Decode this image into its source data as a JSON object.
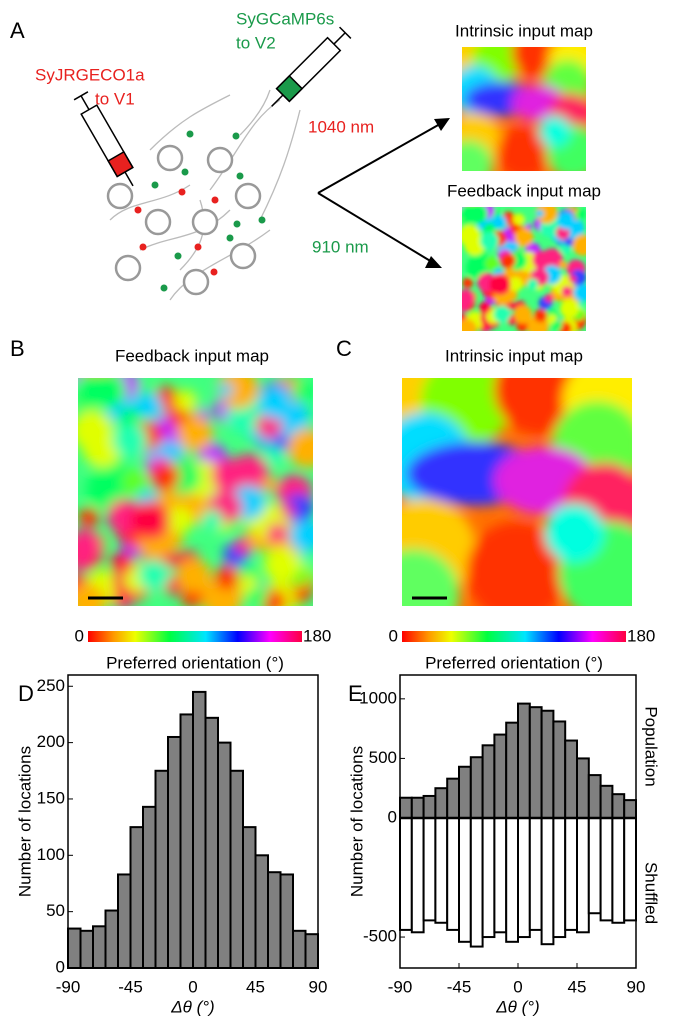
{
  "panels": {
    "a": "A",
    "b": "B",
    "c": "C",
    "d": "D",
    "e": "E"
  },
  "schematic": {
    "red_label": [
      "SyJRGECO1a",
      "to V1"
    ],
    "green_label": [
      "SyGCaMP6s",
      "to V2"
    ],
    "wavelength_red": "1040 nm",
    "wavelength_green": "910 nm",
    "small_map_top": "Intrinsic input map",
    "small_map_bottom": "Feedback input map"
  },
  "maps": {
    "b_title": "Feedback input map",
    "c_title": "Intrinsic input map",
    "colorbar_ticks": [
      0,
      180
    ],
    "colorbar_label": "Preferred orientation (°)"
  },
  "chart_data": [
    {
      "type": "histogram",
      "ylabel": "Number of locations",
      "xlabel": "Δθ (°)",
      "bins": [
        -90,
        -81,
        -72,
        -63,
        -54,
        -45,
        -36,
        -27,
        -18,
        -9,
        0,
        9,
        18,
        27,
        36,
        45,
        54,
        63,
        72,
        81,
        90
      ],
      "values": [
        35,
        33,
        37,
        51,
        83,
        125,
        143,
        175,
        205,
        225,
        245,
        222,
        200,
        175,
        125,
        100,
        85,
        83,
        33,
        30
      ],
      "color": "#808080",
      "xlim": [
        -90,
        90
      ],
      "xticks": [
        -90,
        -45,
        0,
        45,
        90
      ],
      "ylim": [
        0,
        260
      ],
      "yticks": [
        0,
        50,
        100,
        150,
        200,
        250
      ]
    },
    {
      "type": "histogram",
      "ylabel": "Number of locations",
      "xlabel": "Δθ (°)",
      "bins": [
        -90,
        -81,
        -72,
        -63,
        -54,
        -45,
        -36,
        -27,
        -18,
        -9,
        0,
        9,
        18,
        27,
        36,
        45,
        54,
        63,
        72,
        81,
        90
      ],
      "series": [
        {
          "name": "Population",
          "color": "#808080",
          "values": [
            170,
            170,
            185,
            250,
            330,
            430,
            510,
            610,
            700,
            800,
            960,
            930,
            900,
            810,
            650,
            500,
            360,
            270,
            200,
            150
          ]
        },
        {
          "name": "Shuffled",
          "color": "#ffffff",
          "axis": "y2",
          "values": [
            -470,
            -480,
            -430,
            -440,
            -470,
            -520,
            -540,
            -500,
            -480,
            -520,
            -500,
            -470,
            -530,
            -500,
            -470,
            -480,
            -400,
            -430,
            -440,
            -430
          ]
        }
      ],
      "xlim": [
        -90,
        90
      ],
      "xticks": [
        -90,
        -45,
        0,
        45,
        90
      ],
      "ylim": [
        0,
        1200
      ],
      "yticks": [
        0,
        500,
        1000
      ],
      "y2lim": [
        -630,
        0
      ],
      "y2ticks": [
        -500
      ]
    }
  ]
}
